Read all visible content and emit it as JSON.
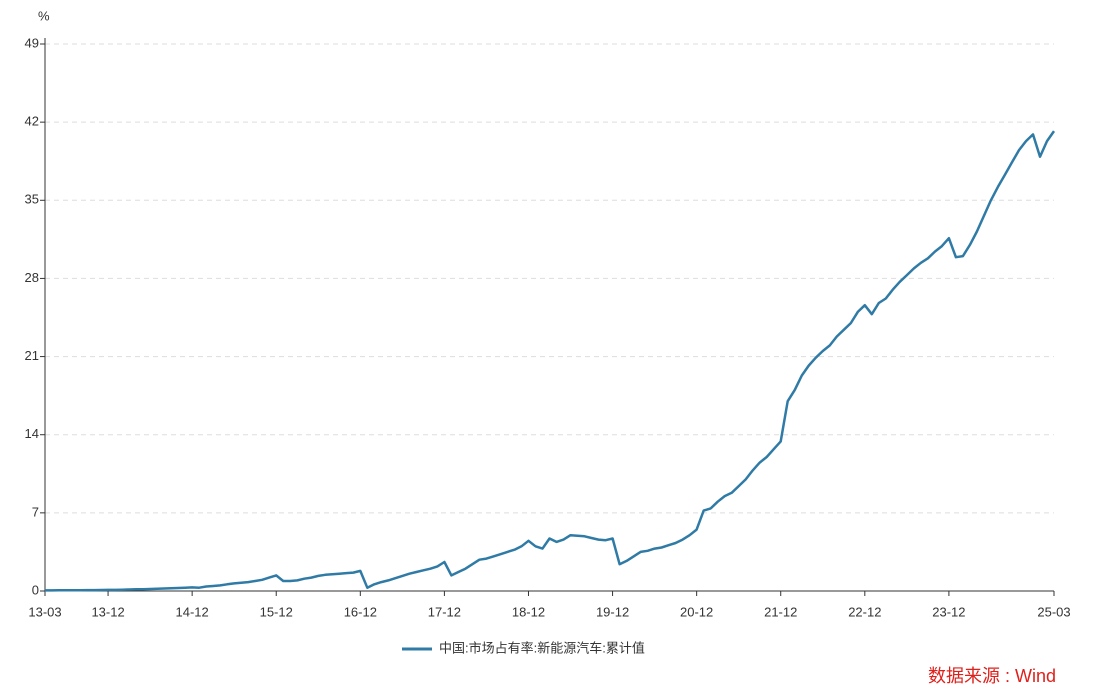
{
  "chart_data": {
    "type": "line",
    "y_label": "%",
    "categories": [
      "13-03",
      null,
      null,
      null,
      null,
      null,
      null,
      null,
      null,
      "13-12",
      null,
      null,
      null,
      null,
      null,
      null,
      null,
      null,
      null,
      null,
      null,
      "14-12",
      null,
      null,
      null,
      null,
      null,
      null,
      null,
      null,
      null,
      null,
      null,
      "15-12",
      null,
      null,
      null,
      null,
      null,
      null,
      null,
      null,
      null,
      null,
      null,
      "16-12",
      null,
      null,
      null,
      null,
      null,
      null,
      null,
      null,
      null,
      null,
      null,
      "17-12",
      null,
      null,
      null,
      null,
      null,
      null,
      null,
      null,
      null,
      null,
      null,
      "18-12",
      null,
      null,
      null,
      null,
      null,
      null,
      null,
      null,
      null,
      null,
      null,
      "19-12",
      null,
      null,
      null,
      null,
      null,
      null,
      null,
      null,
      null,
      null,
      null,
      "20-12",
      null,
      null,
      null,
      null,
      null,
      null,
      null,
      null,
      null,
      null,
      null,
      "21-12",
      null,
      null,
      null,
      null,
      null,
      null,
      null,
      null,
      null,
      null,
      null,
      "22-12",
      null,
      null,
      null,
      null,
      null,
      null,
      null,
      null,
      null,
      null,
      null,
      "23-12",
      null,
      null,
      null,
      null,
      null,
      null,
      null,
      null,
      null,
      null,
      null,
      null,
      null,
      null,
      "25-03"
    ],
    "series": [
      {
        "name": "中国:市场占有率:新能源汽车:累计值",
        "color": "#2f7ba6",
        "values": [
          0.05,
          0.05,
          0.06,
          0.06,
          0.07,
          0.07,
          0.08,
          0.08,
          0.09,
          0.1,
          0.1,
          0.12,
          0.13,
          0.15,
          0.16,
          0.18,
          0.2,
          0.22,
          0.25,
          0.27,
          0.3,
          0.32,
          0.3,
          0.4,
          0.45,
          0.5,
          0.6,
          0.68,
          0.74,
          0.8,
          0.9,
          1.0,
          1.2,
          1.4,
          0.9,
          0.9,
          0.95,
          1.1,
          1.2,
          1.35,
          1.45,
          1.5,
          1.55,
          1.6,
          1.65,
          1.8,
          0.3,
          0.6,
          0.8,
          0.95,
          1.15,
          1.35,
          1.55,
          1.7,
          1.85,
          2.0,
          2.2,
          2.6,
          1.4,
          1.7,
          2.0,
          2.4,
          2.8,
          2.9,
          3.1,
          3.3,
          3.5,
          3.7,
          4.0,
          4.5,
          4.0,
          3.8,
          4.7,
          4.4,
          4.6,
          5.0,
          4.95,
          4.9,
          4.75,
          4.6,
          4.55,
          4.7,
          2.4,
          2.7,
          3.1,
          3.5,
          3.6,
          3.8,
          3.9,
          4.1,
          4.3,
          4.6,
          5.0,
          5.5,
          7.2,
          7.4,
          8.0,
          8.5,
          8.8,
          9.4,
          10.0,
          10.8,
          11.5,
          12.0,
          12.7,
          13.4,
          17.0,
          18.0,
          19.3,
          20.2,
          20.9,
          21.5,
          22.0,
          22.8,
          23.4,
          24.0,
          25.0,
          25.6,
          24.8,
          25.8,
          26.2,
          27.0,
          27.7,
          28.3,
          28.9,
          29.4,
          29.8,
          30.4,
          30.9,
          31.6,
          29.9,
          30.0,
          31.0,
          32.2,
          33.6,
          35.0,
          36.2,
          37.3,
          38.4,
          39.5,
          40.3,
          40.9,
          38.9,
          40.3,
          41.2
        ]
      }
    ],
    "ylim": [
      0,
      49
    ],
    "yticks": [
      0,
      7,
      14,
      21,
      28,
      35,
      42,
      49
    ],
    "grid": true,
    "legend": "bottom",
    "source": "数据来源 : Wind"
  }
}
